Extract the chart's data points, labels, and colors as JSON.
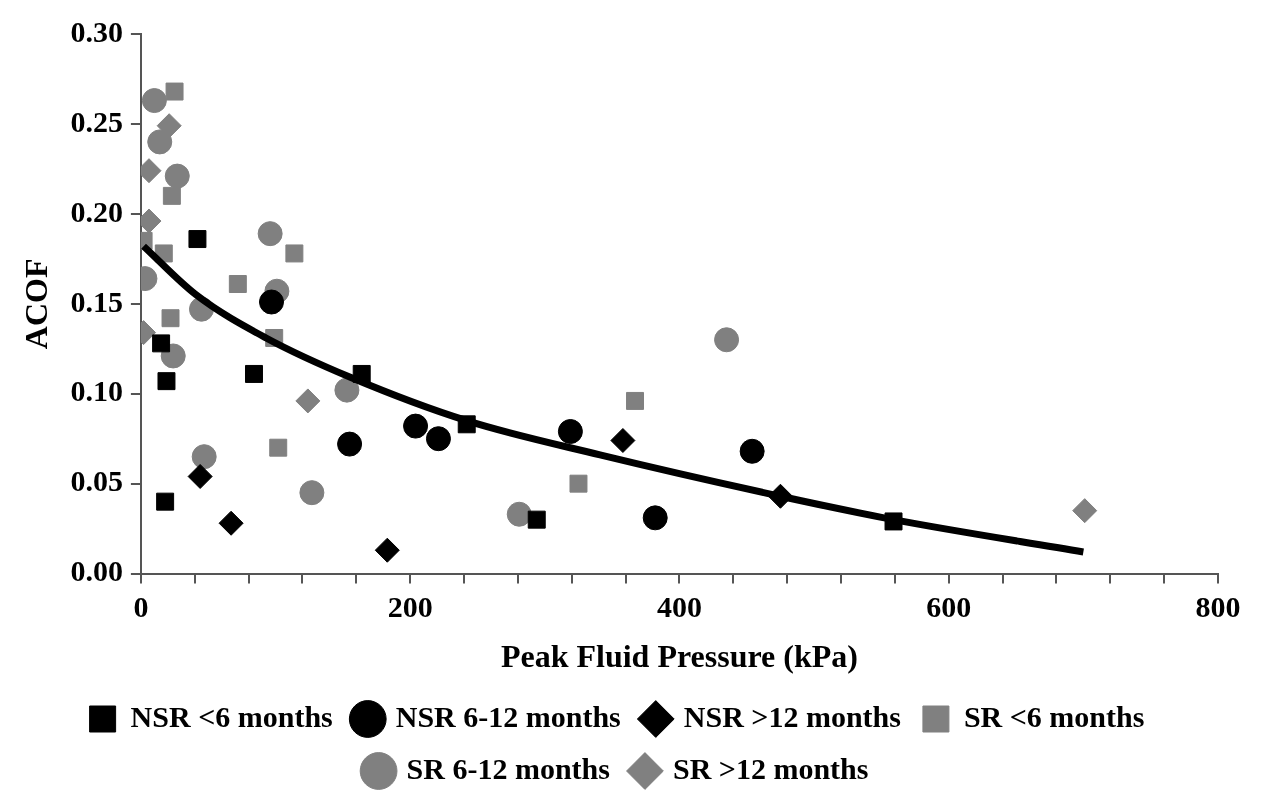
{
  "chart_data": {
    "type": "scatter",
    "xlabel": "Peak Fluid Pressure (kPa)",
    "ylabel": "ACOF",
    "xlim": [
      0,
      800
    ],
    "xticks": [
      0,
      {
        "value": 40,
        "label": null
      },
      {
        "value": 80,
        "label": null
      },
      {
        "value": 120,
        "label": null
      },
      {
        "value": 160,
        "label": null
      },
      200,
      {
        "value": 240,
        "label": null
      },
      {
        "value": 280,
        "label": null
      },
      {
        "value": 320,
        "label": null
      },
      {
        "value": 360,
        "label": null
      },
      400,
      {
        "value": 440,
        "label": null
      },
      {
        "value": 480,
        "label": null
      },
      {
        "value": 520,
        "label": null
      },
      {
        "value": 560,
        "label": null
      },
      600,
      {
        "value": 640,
        "label": null
      },
      {
        "value": 680,
        "label": null
      },
      {
        "value": 720,
        "label": null
      },
      {
        "value": 760,
        "label": null
      },
      800
    ],
    "ylim": [
      0,
      0.3
    ],
    "yticks": [
      {
        "value": 0,
        "label": "0.00"
      },
      {
        "value": 0.05,
        "label": "0.05"
      },
      {
        "value": 0.1,
        "label": "0.10"
      },
      {
        "value": 0.15,
        "label": "0.15"
      },
      {
        "value": 0.2,
        "label": "0.20"
      },
      {
        "value": 0.25,
        "label": "0.25"
      },
      {
        "value": 0.3,
        "label": "0.30"
      }
    ],
    "grid": false,
    "legend": "bottom",
    "series": [
      {
        "name": "NSR <6 months",
        "color": "#000000",
        "marker": "square",
        "x": [
          42,
          15,
          19,
          84,
          164,
          242,
          18,
          294,
          559
        ],
        "values": [
          0.186,
          0.128,
          0.107,
          0.111,
          0.111,
          0.083,
          0.04,
          0.03,
          0.029
        ]
      },
      {
        "name": "NSR 6-12 months",
        "color": "#000000",
        "marker": "circle",
        "x": [
          97,
          155,
          204,
          221,
          319,
          454,
          382
        ],
        "values": [
          0.151,
          0.072,
          0.082,
          0.075,
          0.079,
          0.068,
          0.031
        ]
      },
      {
        "name": "NSR >12 months",
        "color": "#000000",
        "marker": "diamond",
        "x": [
          44,
          67,
          183,
          358,
          475
        ],
        "values": [
          0.054,
          0.028,
          0.013,
          0.074,
          0.043
        ]
      },
      {
        "name": "SR <6 months",
        "color": "#808080",
        "marker": "square",
        "x": [
          25,
          23,
          2,
          17,
          72,
          114,
          22,
          99,
          102,
          325,
          367
        ],
        "values": [
          0.268,
          0.21,
          0.185,
          0.178,
          0.161,
          0.178,
          0.142,
          0.131,
          0.07,
          0.05,
          0.096
        ]
      },
      {
        "name": "SR 6-12 months",
        "color": "#808080",
        "marker": "circle",
        "x": [
          10,
          14,
          27,
          96,
          8,
          3,
          101,
          95,
          45,
          24,
          47,
          153,
          127,
          281,
          435
        ],
        "values": [
          0.263,
          0.24,
          0.221,
          0.189,
          null,
          0.164,
          0.157,
          null,
          0.147,
          0.121,
          0.065,
          0.102,
          0.045,
          0.033,
          0.13
        ]
      },
      {
        "name": "SR >12 months",
        "color": "#808080",
        "marker": "diamond",
        "x": [
          21,
          6,
          6,
          2,
          18,
          124,
          701
        ],
        "values": [
          0.249,
          0.224,
          0.196,
          0.134,
          null,
          0.096,
          0.035
        ]
      },
      {
        "type": "line",
        "color": "#000000",
        "marker": "none",
        "x": [
          2,
          41,
          93,
          156,
          242,
          341,
          475,
          559,
          700
        ],
        "values": [
          0.182,
          0.155,
          0.131,
          0.109,
          0.085,
          0.066,
          0.043,
          0.03,
          0.012
        ]
      }
    ]
  }
}
